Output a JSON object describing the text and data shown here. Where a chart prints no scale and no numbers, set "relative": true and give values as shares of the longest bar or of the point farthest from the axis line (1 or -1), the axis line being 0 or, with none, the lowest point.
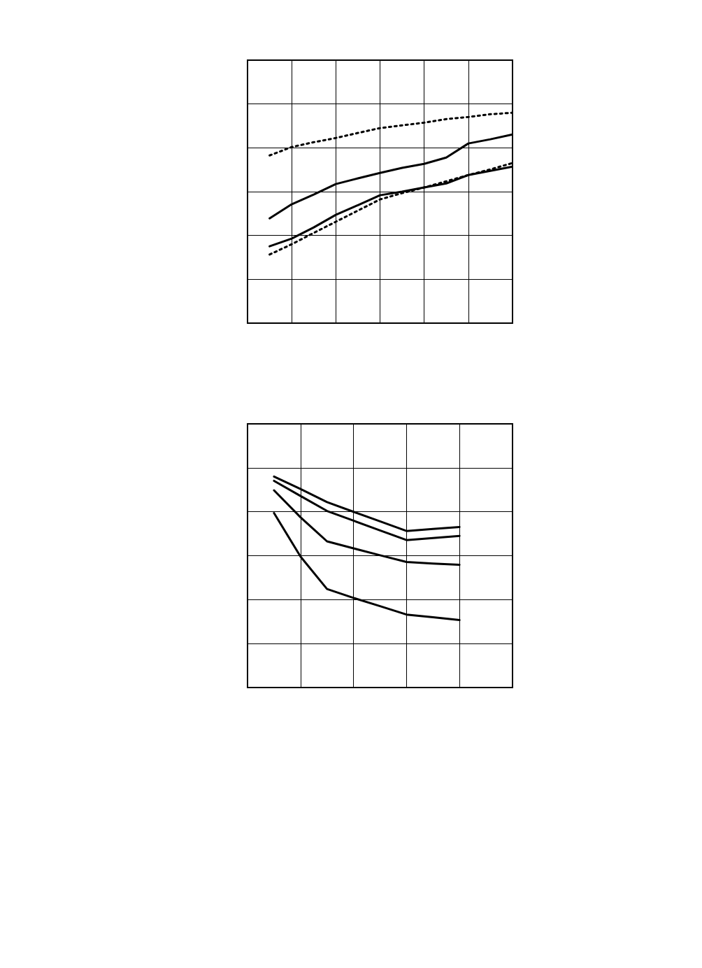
{
  "chart_data": [
    {
      "type": "line",
      "relative": true,
      "grid": true,
      "marker": "none",
      "categories": [
        null,
        null,
        null,
        null,
        null,
        null,
        null,
        null,
        null,
        null,
        null,
        null,
        null
      ],
      "series": [
        {
          "color": "#000000",
          "line_style": "dotted",
          "values": [
            null,
            0.797,
            0.837,
            0.86,
            0.88,
            0.904,
            0.927,
            0.94,
            0.953,
            0.97,
            0.98,
            0.993,
            1
          ]
        },
        {
          "color": "#000000",
          "line_style": "solid",
          "values": [
            null,
            0.498,
            0.565,
            0.611,
            0.661,
            0.688,
            0.714,
            0.738,
            0.757,
            0.787,
            0.854,
            0.874,
            0.897
          ]
        },
        {
          "color": "#000000",
          "line_style": "solid",
          "values": [
            null,
            0.365,
            0.402,
            0.455,
            0.515,
            0.561,
            0.608,
            0.625,
            0.645,
            0.664,
            0.704,
            0.724,
            0.744
          ]
        },
        {
          "color": "#000000",
          "line_style": "dotted",
          "values": [
            null,
            0.326,
            0.375,
            0.429,
            0.482,
            0.535,
            0.588,
            0.618,
            0.645,
            0.674,
            0.704,
            0.731,
            0.761
          ]
        }
      ]
    },
    {
      "type": "line",
      "relative": true,
      "grid": true,
      "marker": "none",
      "categories": [
        null,
        null,
        null,
        null,
        null,
        null,
        null,
        null,
        null,
        null,
        null
      ],
      "series": [
        {
          "color": "#000000",
          "line_style": "solid",
          "values": [
            null,
            1,
            0.941,
            0.879,
            0.833,
            0.788,
            0.742,
            0.752,
            0.761,
            null,
            null
          ]
        },
        {
          "color": "#000000",
          "line_style": "solid",
          "values": [
            null,
            0.98,
            0.908,
            0.837,
            0.791,
            0.745,
            0.699,
            0.709,
            0.719,
            null,
            null
          ]
        },
        {
          "color": "#000000",
          "line_style": "solid",
          "values": [
            null,
            0.935,
            0.807,
            0.693,
            0.66,
            0.627,
            0.595,
            0.588,
            0.582,
            null,
            null
          ]
        },
        {
          "color": "#000000",
          "line_style": "solid",
          "values": [
            null,
            0.827,
            0.621,
            0.467,
            0.425,
            0.386,
            0.346,
            0.333,
            0.32,
            null,
            null
          ]
        }
      ]
    }
  ]
}
